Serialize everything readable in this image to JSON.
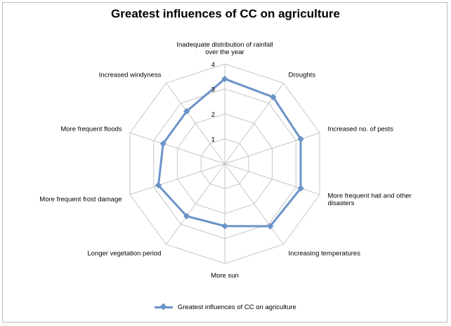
{
  "chart_data": {
    "type": "radar",
    "title": "Greatest influences of CC on agriculture",
    "categories": [
      [
        "Inadequate distribution of rainfall",
        "over the year"
      ],
      [
        "Droughts"
      ],
      [
        "Increased no. of pests"
      ],
      [
        "More frequent hail and other",
        "disasters"
      ],
      [
        "Increasing temperatures"
      ],
      [
        "More sun"
      ],
      [
        "Longer vegetation period"
      ],
      [
        "More frequent frost damage"
      ],
      [
        "More frequent floods"
      ],
      [
        "Increased windyness"
      ]
    ],
    "series": [
      {
        "name": "Greatest influences of CC on agriculture",
        "values": [
          3.4,
          3.3,
          3.2,
          3.2,
          3.1,
          2.5,
          2.6,
          2.8,
          2.6,
          2.6
        ]
      }
    ],
    "rlim": [
      0,
      4
    ],
    "tick_labels": [
      "1",
      "2",
      "3",
      "4"
    ],
    "grid": true,
    "legend_position": "bottom",
    "series_color": "#6b93c8",
    "grid_color": "#c6c6c6"
  }
}
